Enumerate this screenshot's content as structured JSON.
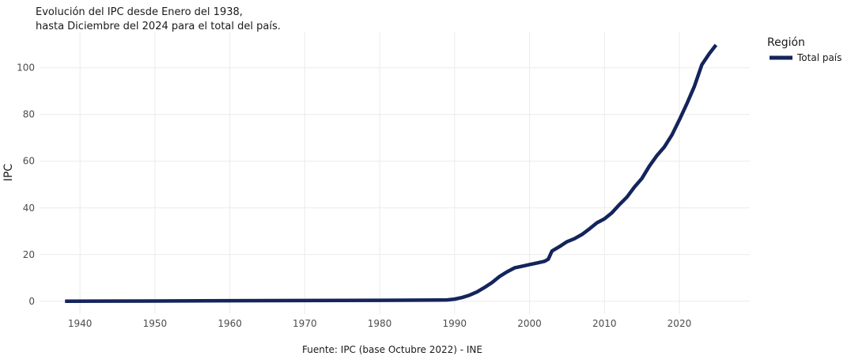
{
  "chart_data": {
    "type": "line",
    "title_lines": [
      "Evolución del IPC desde Enero del 1938,",
      "hasta Diciembre del 2024 para el total del país."
    ],
    "ylabel": "IPC",
    "caption": "Fuente: IPC (base Octubre 2022) - INE",
    "legend": {
      "title": "Región",
      "placement": "right"
    },
    "xlim": [
      1934.6,
      2029.4
    ],
    "ylim": [
      -5.5,
      115.5
    ],
    "x_ticks": [
      1940,
      1950,
      1960,
      1970,
      1980,
      1990,
      2000,
      2010,
      2020
    ],
    "x_tick_labels": [
      "1940",
      "1950",
      "1960",
      "1970",
      "1980",
      "1990",
      "2000",
      "2010",
      "2020"
    ],
    "y_ticks": [
      0,
      20,
      40,
      60,
      80,
      100
    ],
    "y_tick_labels": [
      "0",
      "20",
      "40",
      "60",
      "80",
      "100"
    ],
    "grid": true,
    "series": [
      {
        "name": "Total país",
        "color": "#14245c",
        "x": [
          1938,
          1950,
          1960,
          1970,
          1980,
          1988,
          1989,
          1990,
          1991,
          1992,
          1993,
          1994,
          1995,
          1996,
          1997,
          1998,
          1999,
          2000,
          2001,
          2002,
          2002.5,
          2003,
          2004,
          2005,
          2006,
          2007,
          2008,
          2009,
          2010,
          2011,
          2012,
          2013,
          2014,
          2015,
          2016,
          2017,
          2018,
          2019,
          2020,
          2021,
          2022,
          2023,
          2024,
          2024.9
        ],
        "y": [
          0,
          0.1,
          0.2,
          0.3,
          0.4,
          0.5,
          0.55,
          0.9,
          1.6,
          2.6,
          4.0,
          5.9,
          8.0,
          10.6,
          12.6,
          14.3,
          15.0,
          15.7,
          16.4,
          17.1,
          18.0,
          21.5,
          23.4,
          25.5,
          26.8,
          28.6,
          31.0,
          33.6,
          35.3,
          37.9,
          41.4,
          44.6,
          48.9,
          52.6,
          57.9,
          62.4,
          66.1,
          71.2,
          77.7,
          84.6,
          92.0,
          101.3,
          106.1,
          109.8
        ]
      }
    ]
  }
}
